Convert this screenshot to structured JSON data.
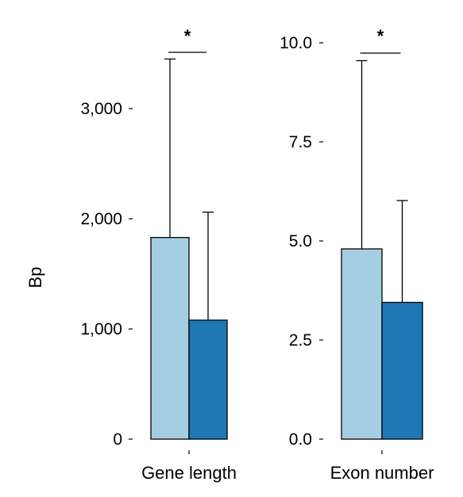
{
  "chart_data": [
    {
      "type": "bar",
      "ylabel": "Bp",
      "category": "Gene length",
      "ylim": [
        0,
        3600
      ],
      "yticks": [
        0,
        1000,
        2000,
        3000
      ],
      "ytick_labels": [
        "0",
        "1,000",
        "2,000",
        "3,000"
      ],
      "bars": [
        {
          "value": 1830,
          "error_upper": 3450,
          "color": "#a6cee3"
        },
        {
          "value": 1080,
          "error_upper": 2060,
          "color": "#1f78b4"
        }
      ],
      "significance": "*"
    },
    {
      "type": "bar",
      "ylabel": "",
      "category": "Exon number",
      "ylim": [
        0,
        10.0
      ],
      "yticks": [
        0,
        2.5,
        5.0,
        7.5,
        10.0
      ],
      "ytick_labels": [
        "0.0",
        "2.5",
        "5.0",
        "7.5",
        "10.0"
      ],
      "bars": [
        {
          "value": 4.8,
          "error_upper": 9.55,
          "color": "#a6cee3"
        },
        {
          "value": 3.45,
          "error_upper": 6.02,
          "color": "#1f78b4"
        }
      ],
      "significance": "*"
    }
  ]
}
